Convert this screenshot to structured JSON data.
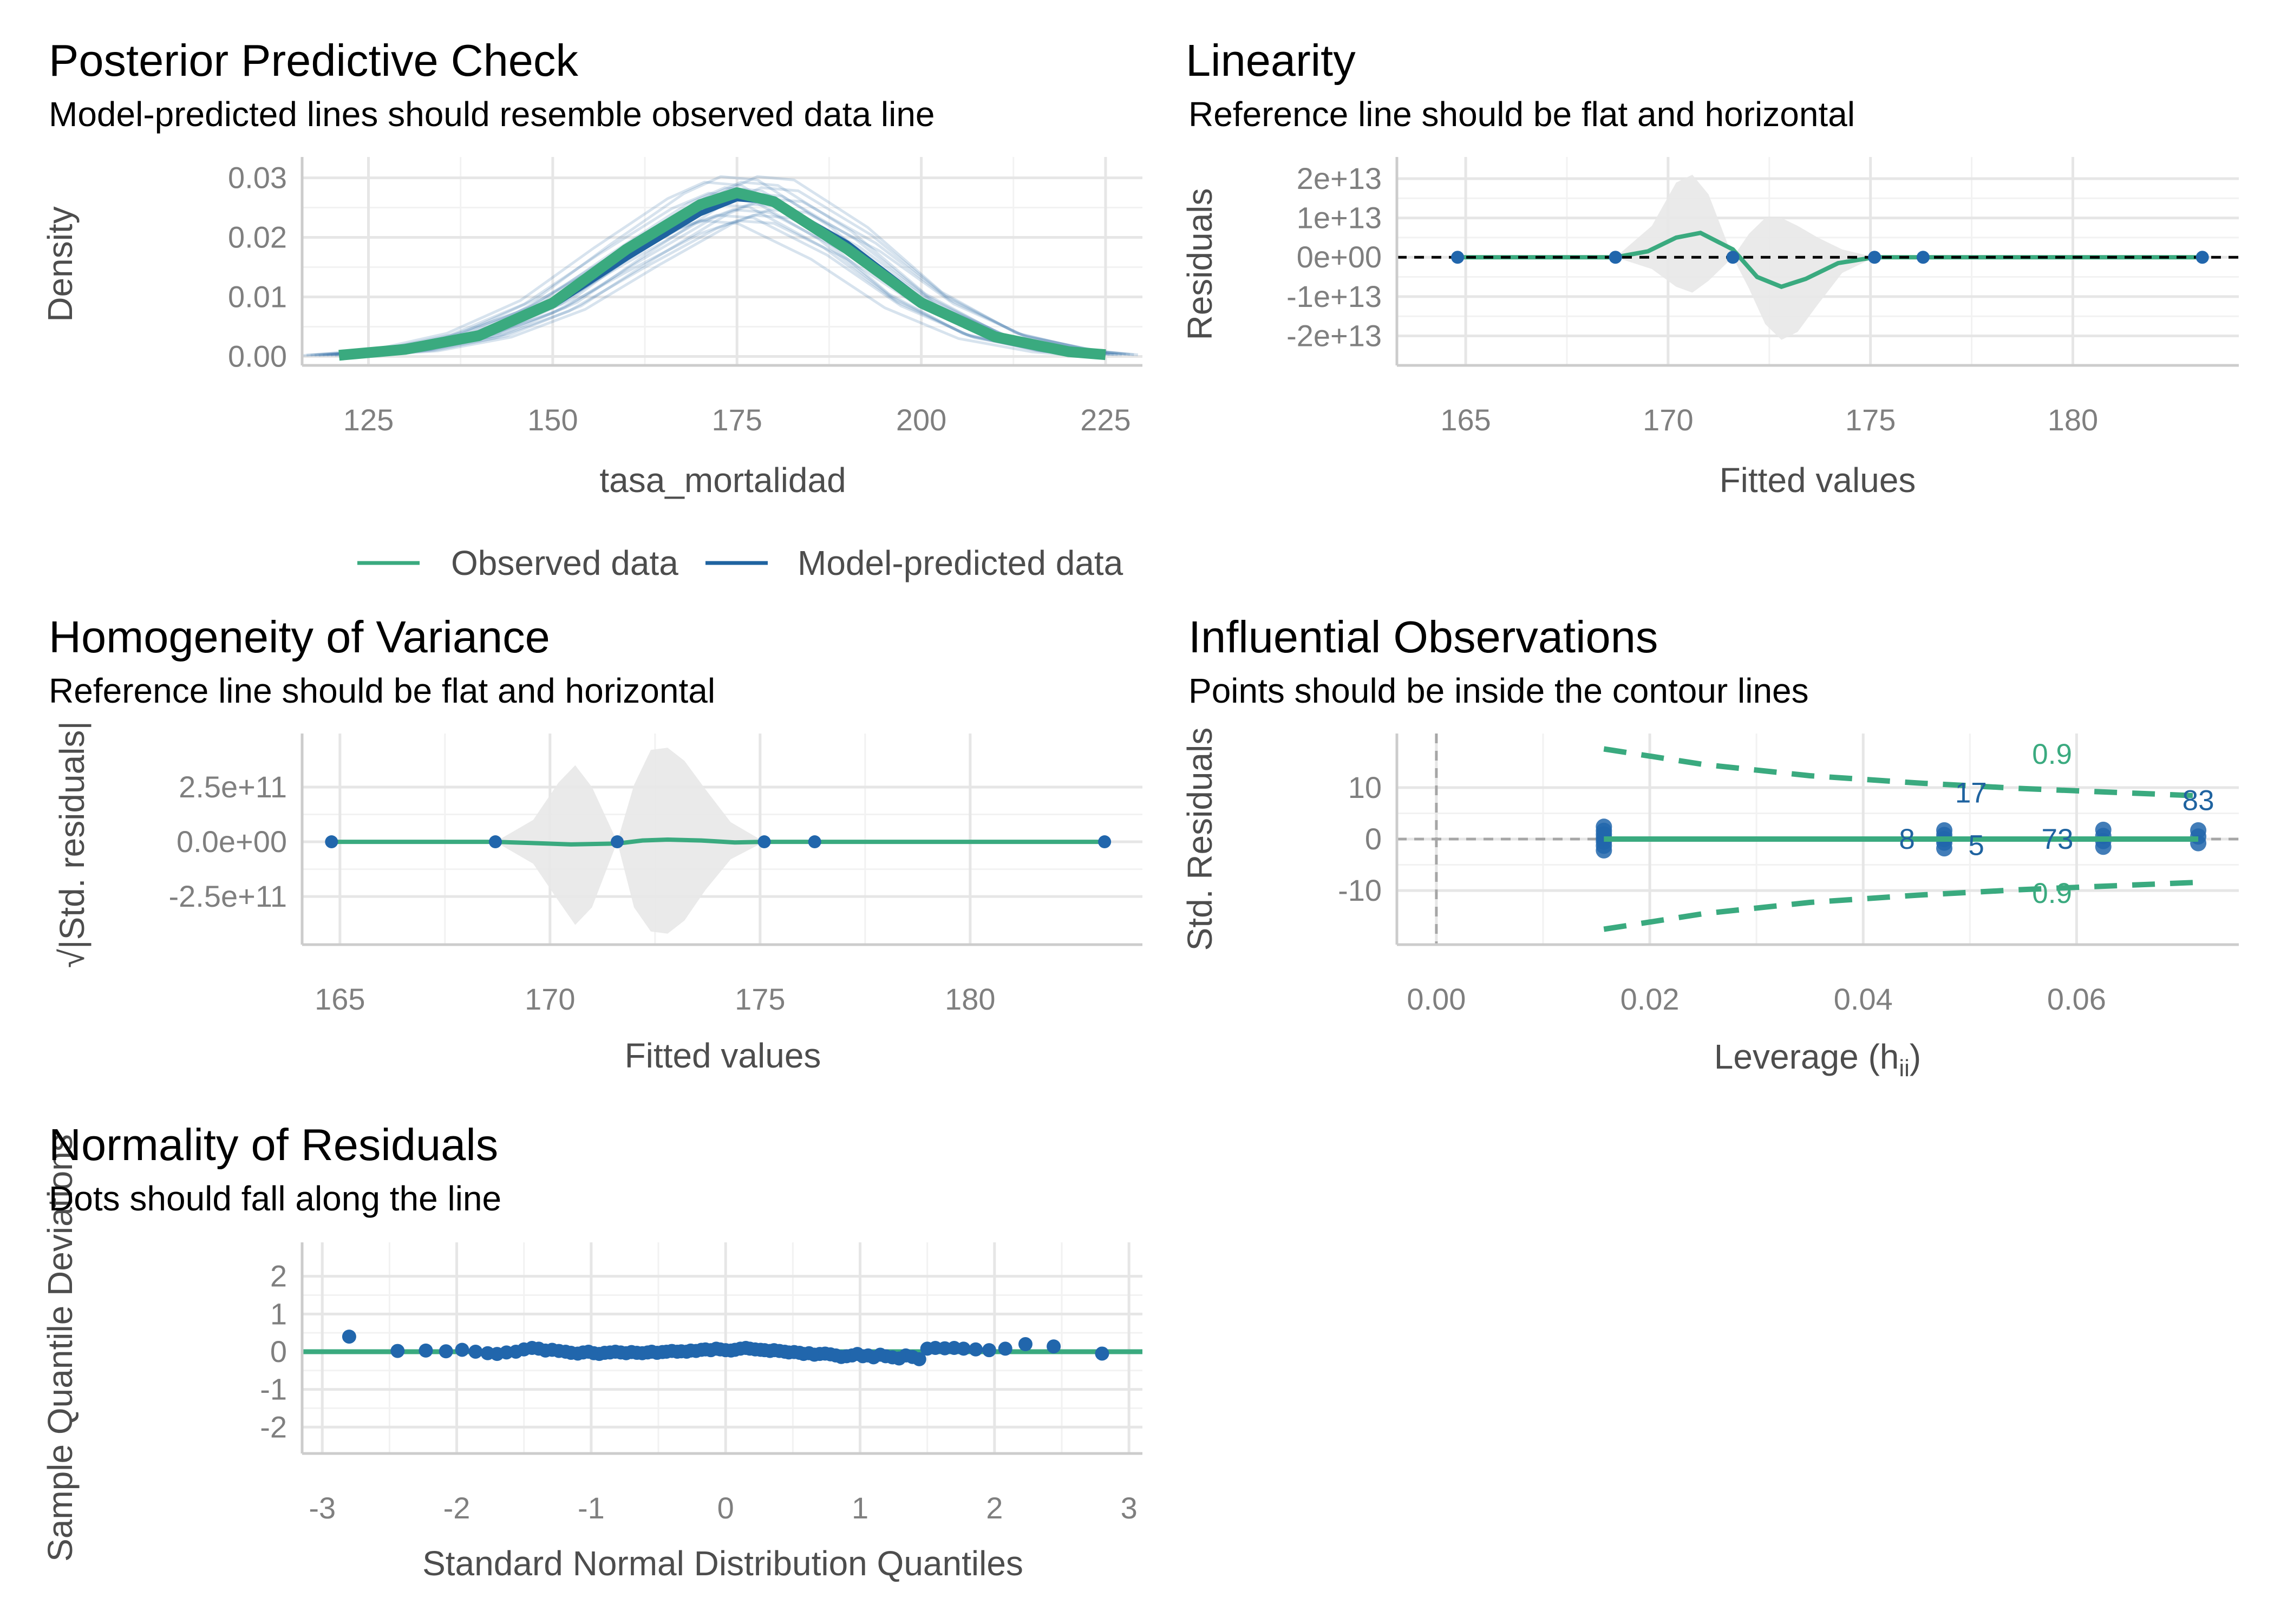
{
  "colors": {
    "observed": "#3aaa7f",
    "predicted": "#1f63a0",
    "point": "#2166ac",
    "band": "#e8e8e8",
    "grid_major": "#e6e6e6",
    "grid_minor": "#f2f2f2",
    "axis": "#cccccc"
  },
  "chart_data": [
    {
      "id": "ppc",
      "type": "line",
      "title": "Posterior Predictive Check",
      "subtitle": "Model-predicted lines should resemble observed data line",
      "xlabel": "tasa_mortalidad",
      "ylabel": "Density",
      "xlim": [
        116,
        230
      ],
      "ylim": [
        -0.0015,
        0.0335
      ],
      "xticks": [
        125,
        150,
        175,
        200,
        225
      ],
      "xtick_labels": [
        "125",
        "150",
        "175",
        "200",
        "225"
      ],
      "yticks": [
        0,
        0.01,
        0.02,
        0.03
      ],
      "ytick_labels": [
        "0.00",
        "0.01",
        "0.02",
        "0.03"
      ],
      "legend": {
        "position": "bottom",
        "entries": [
          "Observed data",
          "Model-predicted data"
        ]
      },
      "series": [
        {
          "name": "Observed data",
          "x": [
            121,
            130,
            140,
            150,
            160,
            170,
            175,
            180,
            190,
            200,
            210,
            220,
            225
          ],
          "y": [
            0.0002,
            0.0012,
            0.0035,
            0.009,
            0.018,
            0.0255,
            0.0275,
            0.026,
            0.018,
            0.009,
            0.0033,
            0.0008,
            0.0003
          ]
        },
        {
          "name": "Model-predicted data",
          "x": [
            121,
            130,
            140,
            150,
            160,
            170,
            175,
            180,
            190,
            200,
            210,
            220,
            225
          ],
          "y": [
            0.0002,
            0.001,
            0.0035,
            0.0085,
            0.0165,
            0.024,
            0.0265,
            0.026,
            0.019,
            0.0095,
            0.0035,
            0.0009,
            0.0003
          ]
        }
      ]
    },
    {
      "id": "linearity",
      "type": "scatter",
      "title": "Linearity",
      "subtitle": "Reference line should be flat and horizontal",
      "xlabel": "Fitted values",
      "ylabel": "Residuals",
      "xlim": [
        163.3,
        184.1
      ],
      "ylim": [
        -27500000000000.0,
        25500000000000.0
      ],
      "xticks": [
        165,
        170,
        175,
        180
      ],
      "xtick_labels": [
        "165",
        "170",
        "175",
        "180"
      ],
      "yticks": [
        -20000000000000.0,
        -10000000000000.0,
        0,
        10000000000000.0,
        20000000000000.0
      ],
      "ytick_labels": [
        "-2e+13",
        "-1e+13",
        "0e+00",
        "1e+13",
        "2e+13"
      ],
      "points": {
        "x": [
          164.8,
          168.7,
          171.6,
          175.1,
          176.3,
          183.2
        ],
        "y": [
          0,
          0,
          0,
          0,
          0,
          0
        ]
      },
      "smooth": {
        "x": [
          164.8,
          168.7,
          169.5,
          170.2,
          170.8,
          171.6,
          172.2,
          172.8,
          173.4,
          174.2,
          175.1,
          183.2
        ],
        "y": [
          0,
          0,
          1500000000000.0,
          5000000000000.0,
          6200000000000.0,
          2000000000000.0,
          -5000000000000.0,
          -7500000000000.0,
          -5500000000000.0,
          -1500000000000.0,
          0,
          0
        ]
      },
      "band": {
        "x": [
          164.8,
          168.7,
          169.6,
          170.2,
          170.6,
          171.0,
          171.6,
          172.0,
          172.4,
          172.8,
          173.2,
          173.7,
          174.3,
          175.1,
          183.2
        ],
        "lo": [
          0,
          0,
          -3000000000000.0,
          -7500000000000.0,
          -9000000000000.0,
          -6000000000000.0,
          0,
          -8000000000000.0,
          -17000000000000.0,
          -21000000000000.0,
          -19000000000000.0,
          -12000000000000.0,
          -4000000000000.0,
          0,
          0
        ],
        "hi": [
          0,
          0,
          8000000000000.0,
          19000000000000.0,
          21000000000000.0,
          16000000000000.0,
          0,
          6000000000000.0,
          10000000000000.0,
          10000000000000.0,
          8000000000000.0,
          5000000000000.0,
          2000000000000.0,
          0,
          0
        ]
      },
      "reference_line": 0
    },
    {
      "id": "homogeneity",
      "type": "scatter",
      "title": "Homogeneity of Variance",
      "subtitle": "Reference line should be flat and horizontal",
      "xlabel": "Fitted values",
      "ylabel": "√|Std. residuals|",
      "xlim": [
        164.1,
        184.1
      ],
      "ylim": [
        -470000000000.0,
        495000000000.0
      ],
      "xticks": [
        165,
        170,
        175,
        180
      ],
      "xtick_labels": [
        "165",
        "170",
        "175",
        "180"
      ],
      "yticks": [
        -250000000000.0,
        0,
        250000000000.0
      ],
      "ytick_labels": [
        "-2.5e+11",
        "0.0e+00",
        "2.5e+11"
      ],
      "points": {
        "x": [
          164.8,
          168.7,
          171.6,
          175.1,
          176.3,
          183.2
        ],
        "y": [
          0,
          0,
          0,
          0,
          0,
          0
        ]
      },
      "smooth": {
        "x": [
          164.8,
          168.7,
          169.5,
          170.5,
          171.6,
          172.2,
          172.8,
          173.6,
          174.4,
          175.1,
          183.2
        ],
        "y": [
          0,
          0,
          -5000000000.0,
          -12000000000.0,
          -8000000000.0,
          6000000000.0,
          10000000000.0,
          6000000000.0,
          -3000000000.0,
          0,
          0
        ]
      },
      "band": {
        "x": [
          164.8,
          168.7,
          169.6,
          170.2,
          170.6,
          171.0,
          171.6,
          172.0,
          172.4,
          172.8,
          173.2,
          173.7,
          174.3,
          175.1,
          183.2
        ],
        "lo": [
          0,
          0,
          -100000000000.0,
          -270000000000.0,
          -380000000000.0,
          -300000000000.0,
          0,
          -300000000000.0,
          -410000000000.0,
          -420000000000.0,
          -360000000000.0,
          -220000000000.0,
          -80000000000.0,
          0,
          0
        ],
        "hi": [
          0,
          0,
          100000000000.0,
          270000000000.0,
          350000000000.0,
          250000000000.0,
          0,
          260000000000.0,
          420000000000.0,
          430000000000.0,
          370000000000.0,
          240000000000.0,
          90000000000.0,
          0,
          0
        ]
      }
    },
    {
      "id": "influential",
      "type": "scatter",
      "title": "Influential Observations",
      "subtitle": "Points should be inside the contour lines",
      "xlabel": "Leverage (h",
      "xlabel_sub": "ii",
      "xlabel_end": ")",
      "ylabel": "Std. Residuals",
      "xlim": [
        -0.0037,
        0.0752
      ],
      "ylim": [
        -20.5,
        20.5
      ],
      "xticks": [
        0,
        0.02,
        0.04,
        0.06
      ],
      "xtick_labels": [
        "0.00",
        "0.02",
        "0.04",
        "0.06"
      ],
      "yticks": [
        -10,
        0,
        10
      ],
      "ytick_labels": [
        "-10",
        "0",
        "10"
      ],
      "points": {
        "x": [
          0.0157,
          0.0157,
          0.0157,
          0.0157,
          0.0157,
          0.0157,
          0.0157,
          0.0476,
          0.0476,
          0.0476,
          0.0476,
          0.0476,
          0.0625,
          0.0625,
          0.0625,
          0.0625,
          0.0714,
          0.0714,
          0.0714
        ],
        "y": [
          -2.2,
          -1.3,
          -0.5,
          0.2,
          0.9,
          1.6,
          2.4,
          -1.8,
          -0.7,
          0,
          0.8,
          1.7,
          -1.5,
          -0.4,
          0.6,
          1.8,
          -0.8,
          0.5,
          1.7
        ]
      },
      "smooth": {
        "x": [
          0.0157,
          0.0714
        ],
        "y": [
          0,
          0
        ]
      },
      "contour_upper": {
        "x": [
          0.0157,
          0.025,
          0.035,
          0.045,
          0.055,
          0.0714
        ],
        "y": [
          17.5,
          14.5,
          12.3,
          10.9,
          9.8,
          8.4
        ]
      },
      "contour_lower": {
        "x": [
          0.0157,
          0.025,
          0.035,
          0.045,
          0.055,
          0.0714
        ],
        "y": [
          -17.5,
          -14.5,
          -12.3,
          -10.9,
          -9.8,
          -8.4
        ]
      },
      "contour_labels": [
        "0.9",
        "0.9"
      ],
      "annotations": [
        {
          "label": "83",
          "x": 0.0714,
          "y": 7.5
        },
        {
          "label": "17",
          "x": 0.0501,
          "y": 9
        },
        {
          "label": "8",
          "x": 0.0441,
          "y": 0
        },
        {
          "label": "5",
          "x": 0.0506,
          "y": -1.2
        },
        {
          "label": "73",
          "x": 0.0582,
          "y": 0
        }
      ]
    },
    {
      "id": "normality",
      "type": "scatter",
      "title": "Normality of Residuals",
      "subtitle": "Dots should fall along the line",
      "xlabel": "Standard Normal Distribution Quantiles",
      "ylabel": "Sample Quantile Deviations",
      "xlim": [
        -3.15,
        3.1
      ],
      "ylim": [
        -2.7,
        2.9
      ],
      "xticks": [
        -3,
        -2,
        -1,
        0,
        1,
        2,
        3
      ],
      "xtick_labels": [
        "-3",
        "-2",
        "-1",
        "0",
        "1",
        "2",
        "3"
      ],
      "yticks": [
        -2,
        -1,
        0,
        1,
        2
      ],
      "ytick_labels": [
        "-2",
        "-1",
        "0",
        "1",
        "2"
      ],
      "reference_line": 0,
      "points": {
        "x": [
          -2.8,
          -2.44,
          -2.23,
          -2.08,
          -1.96,
          -1.86,
          -1.77,
          -1.7,
          -1.63,
          -1.56,
          -1.5,
          -1.44,
          -1.39,
          -1.34,
          -1.29,
          -1.24,
          -1.19,
          -1.15,
          -1.1,
          -1.06,
          -1.02,
          -0.98,
          -0.94,
          -0.9,
          -0.86,
          -0.82,
          -0.78,
          -0.74,
          -0.7,
          -0.66,
          -0.62,
          -0.58,
          -0.55,
          -0.51,
          -0.47,
          -0.44,
          -0.4,
          -0.36,
          -0.33,
          -0.29,
          -0.26,
          -0.22,
          -0.18,
          -0.15,
          -0.11,
          -0.07,
          -0.04,
          0,
          0.04,
          0.07,
          0.11,
          0.15,
          0.18,
          0.22,
          0.26,
          0.29,
          0.33,
          0.36,
          0.4,
          0.44,
          0.47,
          0.51,
          0.55,
          0.58,
          0.62,
          0.66,
          0.7,
          0.74,
          0.78,
          0.82,
          0.86,
          0.9,
          0.94,
          0.98,
          1.02,
          1.06,
          1.1,
          1.15,
          1.19,
          1.24,
          1.29,
          1.34,
          1.39,
          1.44,
          1.5,
          1.56,
          1.63,
          1.7,
          1.77,
          1.86,
          1.96,
          2.08,
          2.23,
          2.44,
          2.8
        ],
        "y": [
          0.4,
          0.02,
          0.03,
          0.01,
          0.05,
          0,
          -0.04,
          -0.06,
          -0.02,
          0,
          0.06,
          0.1,
          0.08,
          0.03,
          0.05,
          0.02,
          0,
          -0.03,
          -0.05,
          -0.02,
          0,
          -0.04,
          -0.06,
          -0.03,
          -0.02,
          0,
          -0.02,
          -0.04,
          -0.01,
          -0.03,
          -0.04,
          -0.02,
          0,
          -0.03,
          -0.01,
          0,
          0.02,
          0,
          0.01,
          0,
          0.03,
          0.02,
          0.05,
          0.06,
          0.04,
          0.08,
          0.06,
          0.04,
          0.03,
          0.05,
          0.08,
          0.1,
          0.08,
          0.06,
          0.05,
          0.04,
          0.02,
          0.04,
          0.02,
          0,
          -0.02,
          -0.01,
          -0.03,
          -0.06,
          -0.04,
          -0.08,
          -0.06,
          -0.05,
          -0.07,
          -0.1,
          -0.14,
          -0.12,
          -0.1,
          -0.06,
          -0.12,
          -0.1,
          -0.15,
          -0.08,
          -0.12,
          -0.15,
          -0.18,
          -0.1,
          -0.14,
          -0.2,
          0.08,
          0.1,
          0.09,
          0.1,
          0.08,
          0.06,
          0.04,
          0.08,
          0.2,
          0.14,
          -0.05
        ]
      }
    }
  ]
}
